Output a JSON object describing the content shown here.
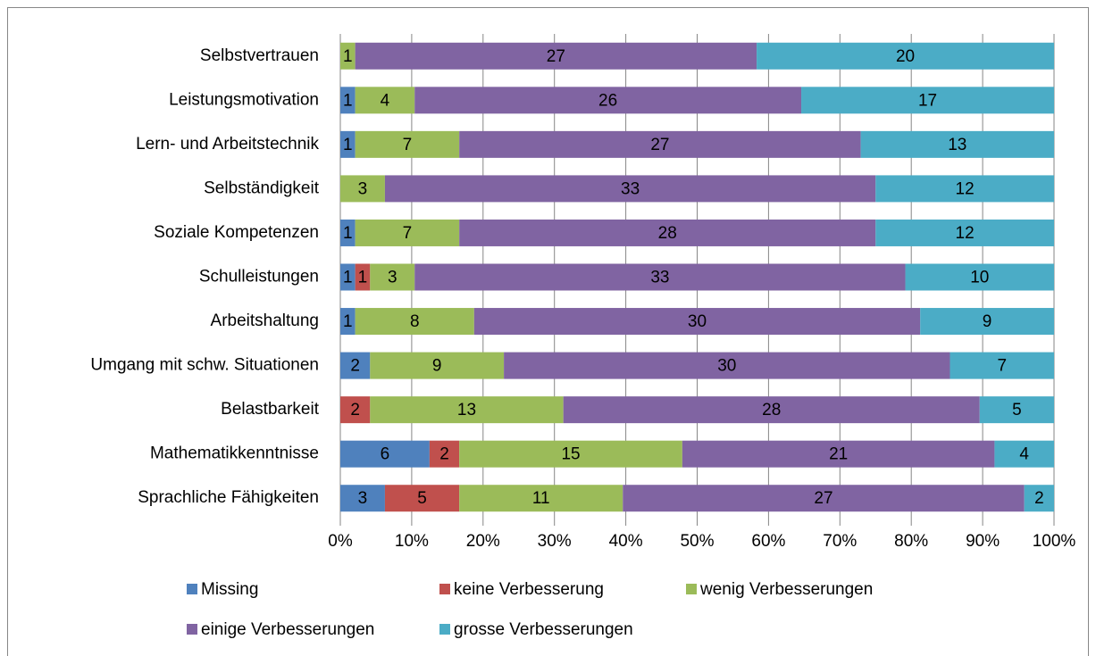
{
  "chart_data": {
    "type": "bar",
    "orientation": "horizontal",
    "stacking": "percent",
    "categories": [
      "Selbstvertrauen",
      "Leistungsmotivation",
      "Lern- und Arbeitstechnik",
      "Selbständigkeit",
      "Soziale Kompetenzen",
      "Schulleistungen",
      "Arbeitshaltung",
      "Umgang mit schw. Situationen",
      "Belastbarkeit",
      "Mathematikkenntnisse",
      "Sprachliche Fähigkeiten"
    ],
    "series": [
      {
        "name": "Missing",
        "color": "#4f81bd",
        "values": [
          0,
          1,
          1,
          0,
          1,
          1,
          1,
          2,
          0,
          6,
          3
        ]
      },
      {
        "name": "keine Verbesserung",
        "color": "#c0504d",
        "values": [
          0,
          0,
          0,
          0,
          0,
          1,
          0,
          0,
          2,
          2,
          5
        ]
      },
      {
        "name": "wenig Verbesserungen",
        "color": "#9bbb59",
        "values": [
          1,
          4,
          7,
          3,
          7,
          3,
          8,
          9,
          13,
          15,
          11
        ]
      },
      {
        "name": "einige Verbesserungen",
        "color": "#8064a2",
        "values": [
          27,
          26,
          27,
          33,
          28,
          33,
          30,
          30,
          28,
          21,
          27
        ]
      },
      {
        "name": "grosse Verbesserungen",
        "color": "#4bacc6",
        "values": [
          20,
          17,
          13,
          12,
          12,
          10,
          9,
          7,
          5,
          4,
          2
        ]
      }
    ],
    "xlim": [
      0,
      100
    ],
    "xticks": [
      {
        "value": 0,
        "label": "0%"
      },
      {
        "value": 10,
        "label": "10%"
      },
      {
        "value": 20,
        "label": "20%"
      },
      {
        "value": 30,
        "label": "30%"
      },
      {
        "value": 40,
        "label": "40%"
      },
      {
        "value": 50,
        "label": "50%"
      },
      {
        "value": 60,
        "label": "60%"
      },
      {
        "value": 70,
        "label": "70%"
      },
      {
        "value": 80,
        "label": "80%"
      },
      {
        "value": 90,
        "label": "90%"
      },
      {
        "value": 100,
        "label": "100%"
      }
    ],
    "grid": true,
    "legend": "bottom"
  }
}
